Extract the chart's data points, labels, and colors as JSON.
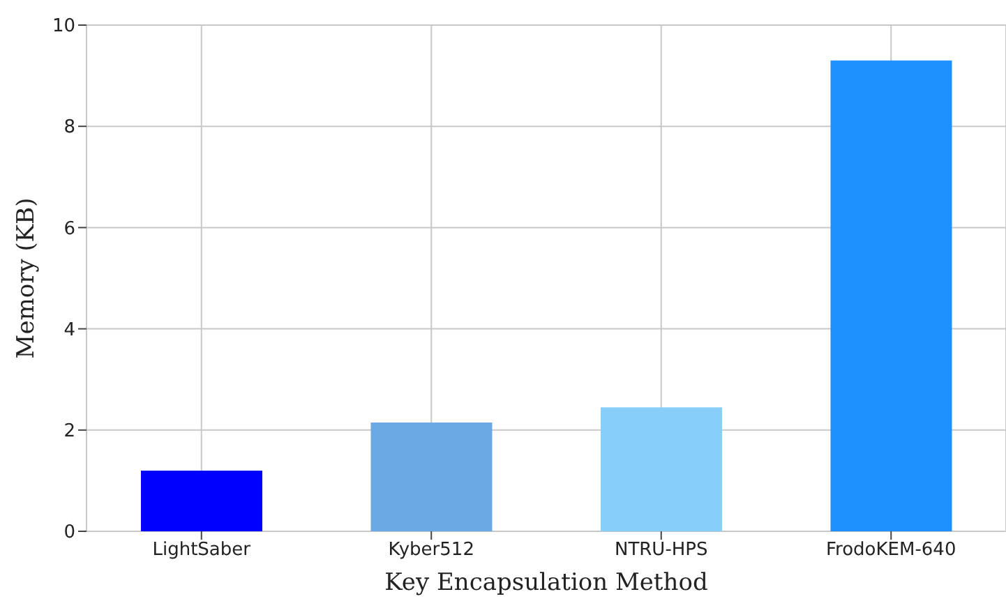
{
  "chart_data": {
    "type": "bar",
    "xlabel": "Key Encapsulation Method",
    "ylabel": "Memory (KB)",
    "categories": [
      "LightSaber",
      "Kyber512",
      "NTRU-HPS",
      "FrodoKEM-640"
    ],
    "values": [
      1.2,
      2.15,
      2.45,
      9.3
    ],
    "colors": [
      "#0000ff",
      "#6aa9e4",
      "#87cefa",
      "#1e90ff"
    ],
    "ylim": [
      0,
      10
    ],
    "yticks": [
      0,
      2,
      4,
      6,
      8,
      10
    ],
    "grid": true
  }
}
